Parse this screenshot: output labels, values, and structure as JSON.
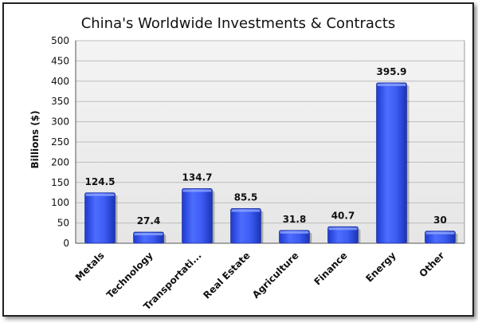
{
  "chart_data": {
    "type": "bar",
    "title": "China's Worldwide Investments & Contracts",
    "xlabel": "",
    "ylabel": "Billions ($)",
    "ylim": [
      0,
      500
    ],
    "yticks": [
      0,
      50,
      100,
      150,
      200,
      250,
      300,
      350,
      400,
      450,
      500
    ],
    "categories": [
      "Metals",
      "Technology",
      "Transportati...",
      "Real Estate",
      "Agriculture",
      "Finance",
      "Energy",
      "Other"
    ],
    "values": [
      124.5,
      27.4,
      134.7,
      85.5,
      31.8,
      40.7,
      395.9,
      30
    ],
    "value_labels": [
      "124.5",
      "27.4",
      "134.7",
      "85.5",
      "31.8",
      "40.7",
      "395.9",
      "30"
    ],
    "grid": true,
    "legend": "none",
    "colors": {
      "bar": "#3a5ff0",
      "bar_dark": "#1f3bc4",
      "bar_light": "#6f8cff",
      "plot_bg": "#ededed",
      "grid": "#bdbdbd"
    }
  }
}
